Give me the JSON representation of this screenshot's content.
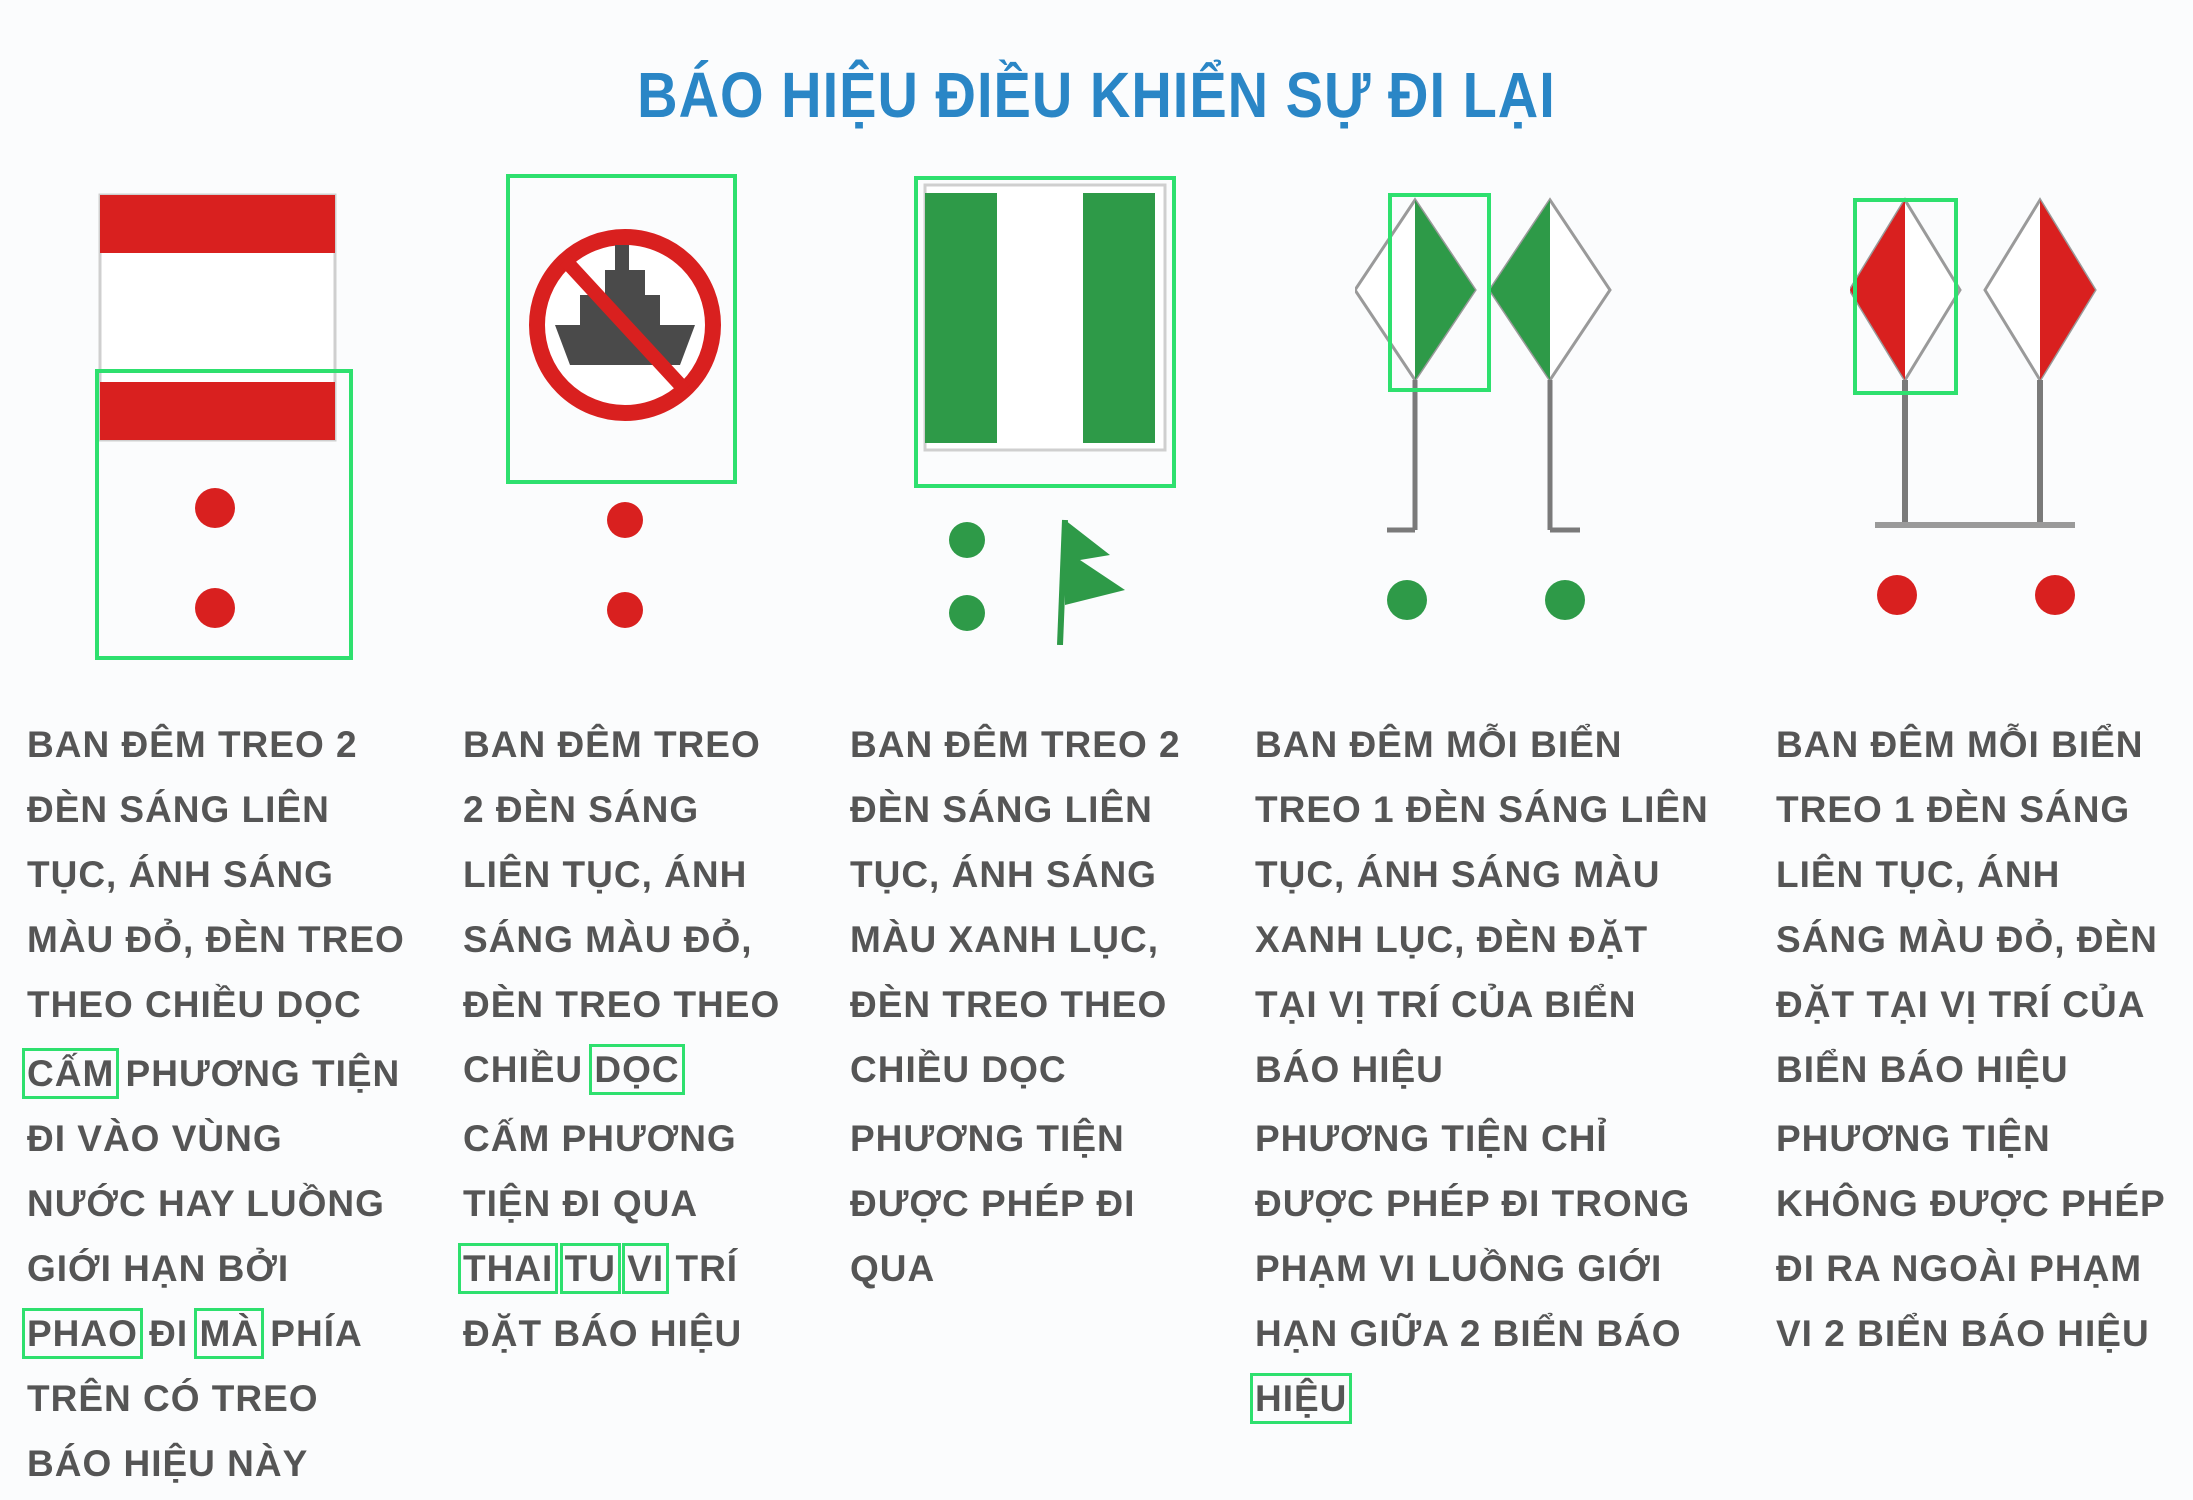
{
  "title": "BÁO HIỆU ĐIỀU KHIỂN SỰ ĐI LẠI",
  "colors": {
    "red": "#d9201f",
    "green": "#2e9a48",
    "title_blue": "#2a86c6",
    "highlight": "#2ee06e",
    "text": "#555555"
  },
  "signs": [
    {
      "id": "cam-di-vao-vung-nuoc",
      "icon": "red-white-red-board-icon",
      "lights": "two-red-vertical",
      "line1": "BAN ĐÊM TREO 2 ĐÈN SÁNG LIÊN TỤC, ÁNH SÁNG MÀU ĐỎ, ĐÈN TREO THEO CHIỀU DỌC",
      "line2_pre": "",
      "line2_hl1": "CẤM",
      "line2_mid": " PHƯƠNG TIỆN ĐI VÀO VÙNG NƯỚC HAY LUỒNG GIỚI HẠN BỞI ",
      "line2_hl2": "PHAO",
      "line2_mid2": " ĐI ",
      "line2_hl3": "MÀ",
      "line2_post": " PHÍA TRÊN CÓ TREO BÁO HIỆU NÀY"
    },
    {
      "id": "cam-phuong-tien-di-qua",
      "icon": "no-ship-prohibition-icon",
      "lights": "two-red-vertical",
      "line1_pre": "BAN ĐÊM TREO 2 ĐÈN SÁNG LIÊN TỤC, ÁNH SÁNG MÀU ĐỎ, ĐÈN TREO THEO CHIỀU ",
      "line1_hl": "DỌC",
      "line2_pre": "CẤM PHƯƠNG TIỆN ĐI QUA ",
      "line2_hl1": "THAI",
      "line2_hl2": "TU",
      "line2_hl3": "VI",
      "line2_post": " TRÍ ĐẶT BÁO HIỆU"
    },
    {
      "id": "phuong-tien-duoc-phep-di-qua",
      "icon": "green-white-green-board-icon",
      "lights": "two-green-vertical-and-flag",
      "line1": "BAN ĐÊM TREO 2 ĐÈN SÁNG LIÊN TỤC, ÁNH SÁNG MÀU XANH LỤC, ĐÈN TREO THEO CHIỀU DỌC",
      "line2": "PHƯƠNG TIỆN ĐƯỢC PHÉP ĐI QUA"
    },
    {
      "id": "di-trong-pham-vi-luong",
      "icon": "green-diamond-pair-icon",
      "lights": "one-green-each",
      "line1": "BAN ĐÊM MỖI BIỂN TREO 1 ĐÈN SÁNG LIÊN TỤC, ÁNH SÁNG MÀU XANH LỤC, ĐÈN ĐẶT TẠI VỊ TRÍ CỦA BIỂN BÁO HIỆU",
      "line2_pre": "PHƯƠNG TIỆN CHỈ ĐƯỢC PHÉP ĐI TRONG PHẠM VI LUỒNG GIỚI HẠN GIỮA 2 BIỂN BÁO ",
      "line2_hl": "HIỆU"
    },
    {
      "id": "khong-duoc-di-ra-ngoai",
      "icon": "red-diamond-pair-icon",
      "lights": "one-red-each",
      "line1": "BAN ĐÊM MỖI BIỂN TREO 1 ĐÈN SÁNG LIÊN TỤC, ÁNH SÁNG MÀU ĐỎ, ĐÈN ĐẶT TẠI VỊ TRÍ CỦA BIỂN BÁO HIỆU",
      "line2": "PHƯƠNG TIỆN KHÔNG ĐƯỢC PHÉP ĐI RA NGOÀI PHẠM VI 2 BIỂN BÁO HIỆU"
    }
  ]
}
